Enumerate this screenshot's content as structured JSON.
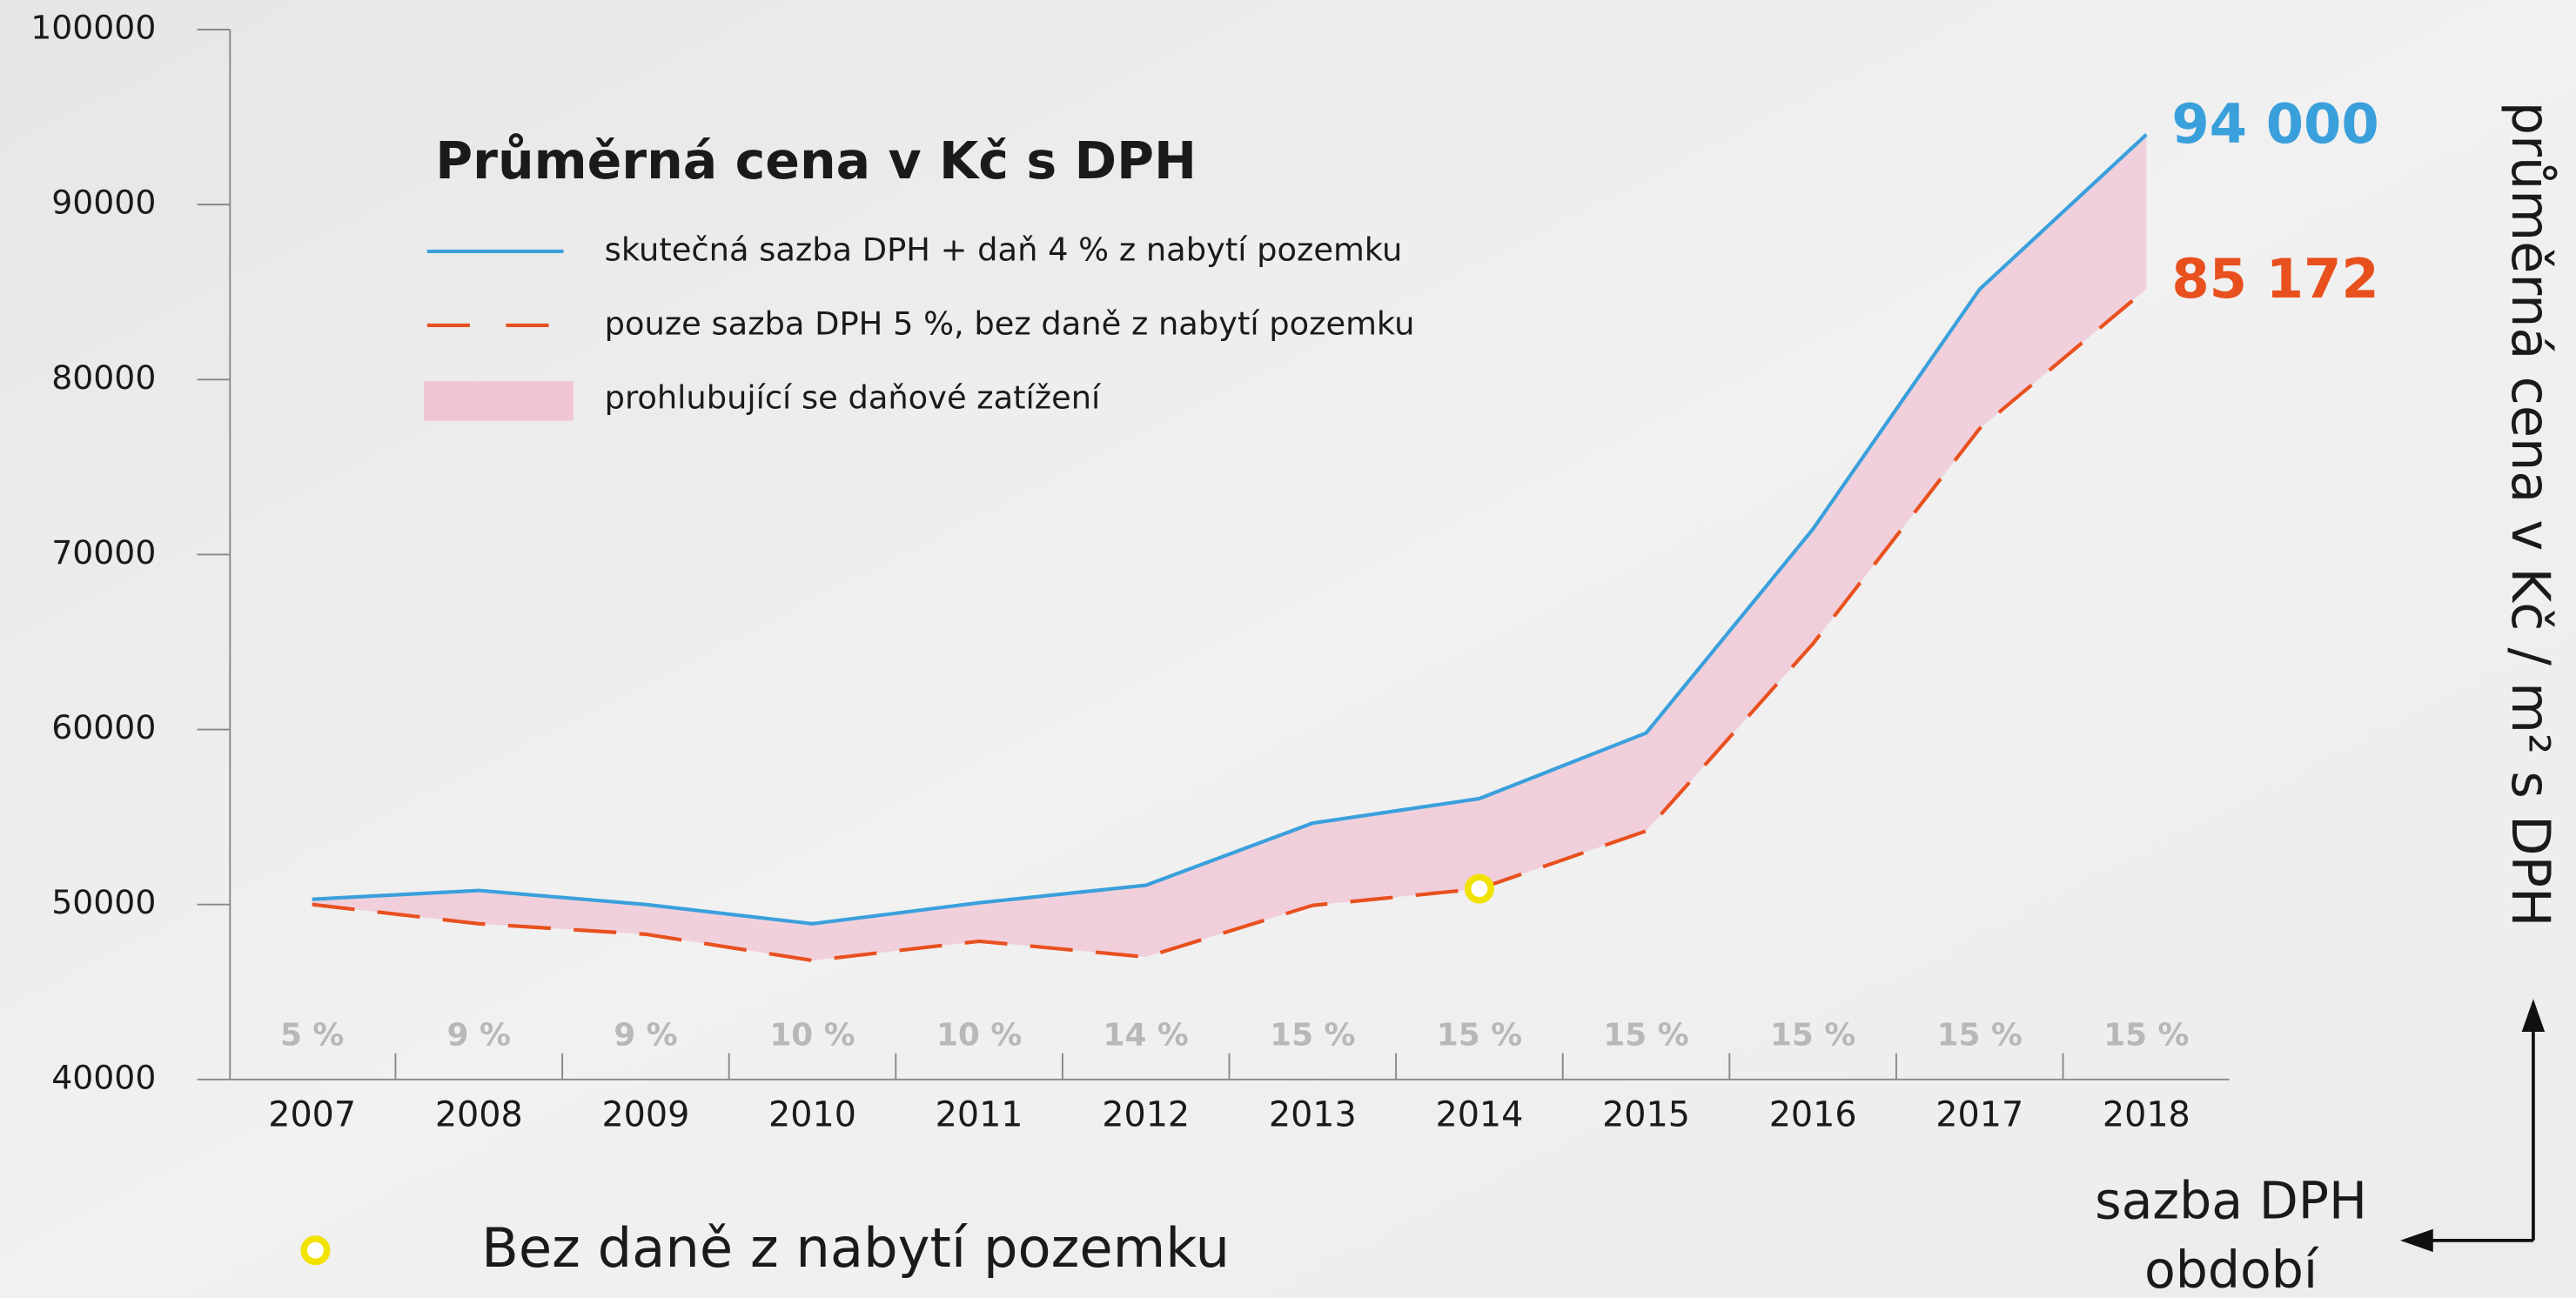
{
  "chart_data": {
    "type": "line",
    "legend_title": "Průměrná cena v Kč s DPH",
    "y_label": "průměrná cena v Kč / m² s DPH",
    "x_label": "období",
    "rate_label": "sazba DPH",
    "categories": [
      "2007",
      "2008",
      "2009",
      "2010",
      "2011",
      "2012",
      "2013",
      "2014",
      "2015",
      "2016",
      "2017",
      "2018"
    ],
    "vat_rates": [
      "5 %",
      "9 %",
      "9 %",
      "10 %",
      "10 %",
      "14 %",
      "15 %",
      "15 %",
      "15 %",
      "15 %",
      "15 %",
      "15 %"
    ],
    "series": [
      {
        "name": "skutečná sazba DPH + daň 4 % z nabytí pozemku",
        "color": "#3aa0dc",
        "dash": false,
        "values": [
          50300,
          50800,
          50000,
          48900,
          50100,
          51100,
          54650,
          56050,
          59800,
          71450,
          85160,
          94000
        ],
        "value_labels": [
          null,
          null,
          null,
          null,
          null,
          null,
          null,
          null,
          null,
          null,
          null,
          "94 000"
        ]
      },
      {
        "name": "pouze  sazba DPH 5 %, bez daně z nabytí pozemku",
        "color": "#e8501e",
        "dash": true,
        "values": [
          50000,
          48900,
          48300,
          46800,
          47900,
          47000,
          49950,
          50900,
          54200,
          64900,
          77200,
          85172
        ],
        "value_labels": [
          null,
          null,
          null,
          null,
          null,
          null,
          null,
          null,
          null,
          null,
          null,
          "85 172"
        ]
      }
    ],
    "band": {
      "name": "prohlubující se daňové zatížení",
      "color": "#f0c4d4"
    },
    "marker": {
      "label": "Bez daně z nabytí pozemku",
      "category": "2014",
      "color": "#f2e200"
    },
    "ylim": [
      40000,
      100000
    ],
    "yticks": [
      40000,
      50000,
      60000,
      70000,
      80000,
      90000,
      100000
    ]
  }
}
